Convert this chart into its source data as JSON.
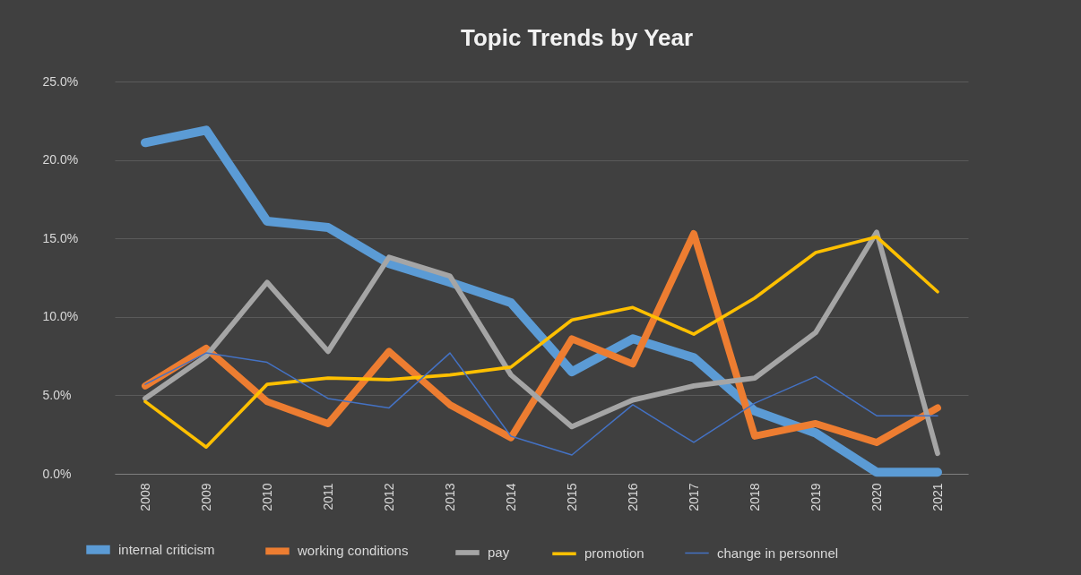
{
  "chart_data": {
    "type": "line",
    "title": "Topic Trends by Year",
    "categories": [
      "2008",
      "2009",
      "2010",
      "2011",
      "2012",
      "2013",
      "2014",
      "2015",
      "2016",
      "2017",
      "2018",
      "2019",
      "2020",
      "2021"
    ],
    "series": [
      {
        "name": "internal criticism",
        "color": "#5b9bd5",
        "values": [
          21.1,
          21.9,
          16.1,
          15.7,
          13.4,
          12.2,
          10.9,
          6.5,
          8.6,
          7.4,
          4.0,
          2.6,
          0.1,
          0.1
        ]
      },
      {
        "name": "working conditions",
        "color": "#ed7d31",
        "values": [
          5.6,
          8.0,
          4.6,
          3.2,
          7.8,
          4.4,
          2.3,
          8.6,
          7.0,
          15.3,
          2.4,
          3.2,
          2.0,
          4.2
        ]
      },
      {
        "name": "pay",
        "color": "#a5a5a5",
        "values": [
          4.8,
          7.5,
          12.2,
          7.8,
          13.8,
          12.6,
          6.3,
          3.0,
          4.7,
          5.6,
          6.1,
          9.0,
          15.4,
          1.3
        ]
      },
      {
        "name": "promotion",
        "color": "#ffc000",
        "values": [
          4.6,
          1.7,
          5.7,
          6.1,
          6.0,
          6.3,
          6.8,
          9.8,
          10.6,
          8.9,
          11.2,
          14.1,
          15.1,
          11.6
        ]
      },
      {
        "name": "change in personnel",
        "color": "#4472c4",
        "values": [
          5.7,
          7.7,
          7.1,
          4.8,
          4.2,
          7.7,
          2.4,
          1.2,
          4.4,
          2.0,
          4.5,
          6.2,
          3.7,
          3.7
        ]
      }
    ],
    "ylim": [
      0,
      25
    ],
    "yticks": [
      {
        "value": 0,
        "label": "0.0%"
      },
      {
        "value": 5,
        "label": "5.0%"
      },
      {
        "value": 10,
        "label": "10.0%"
      },
      {
        "value": 15,
        "label": "15.0%"
      },
      {
        "value": 20,
        "label": "20.0%"
      },
      {
        "value": 25,
        "label": "25.0%"
      }
    ],
    "grid": "y",
    "legend": "bottom",
    "line_style": "solid"
  }
}
